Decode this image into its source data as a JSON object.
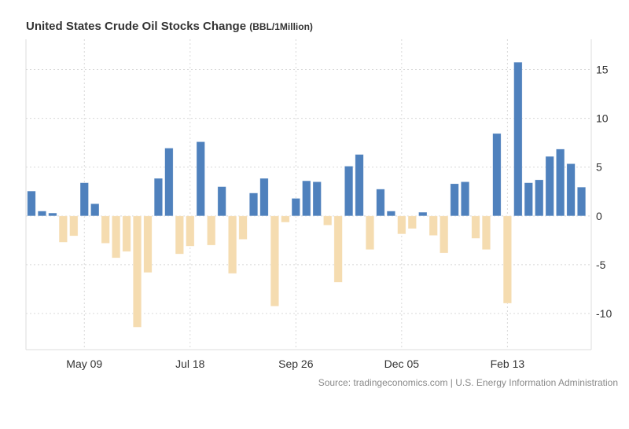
{
  "title": "United States Crude Oil Stocks Change",
  "unit": "(BBL/1Million)",
  "source": "Source: tradingeconomics.com | U.S. Energy Information Administration",
  "colors": {
    "positive": "#4f81bd",
    "negative": "#f5dcb0",
    "grid": "#d8d8d8"
  },
  "chart_data": {
    "type": "bar",
    "title": "United States Crude Oil Stocks Change (BBL/1Million)",
    "x_tick_labels": [
      "May 09",
      "Jul 18",
      "Sep 26",
      "Dec 05",
      "Feb 13"
    ],
    "x_tick_bar_index": [
      5,
      15,
      25,
      35,
      45
    ],
    "y_ticks": [
      -10,
      -5,
      0,
      5,
      10,
      15
    ],
    "ylim": [
      -13.7,
      18.1
    ],
    "grid": true,
    "y_axis_side": "right",
    "values": [
      2.55,
      0.5,
      0.3,
      -2.7,
      -2.05,
      3.4,
      1.25,
      -2.8,
      -4.3,
      -3.65,
      -11.4,
      -5.8,
      3.85,
      6.95,
      -3.9,
      -3.1,
      7.6,
      -3.0,
      3.0,
      -5.9,
      -2.4,
      2.35,
      3.85,
      -9.25,
      -0.65,
      1.8,
      3.6,
      3.5,
      -0.95,
      -6.8,
      5.1,
      6.3,
      -3.45,
      2.75,
      0.5,
      -1.85,
      -1.3,
      0.38,
      -2.0,
      -3.8,
      3.3,
      3.5,
      -2.3,
      -3.45,
      8.45,
      -8.95,
      15.75,
      3.4,
      3.7,
      6.1,
      6.85,
      5.35,
      2.95
    ]
  }
}
